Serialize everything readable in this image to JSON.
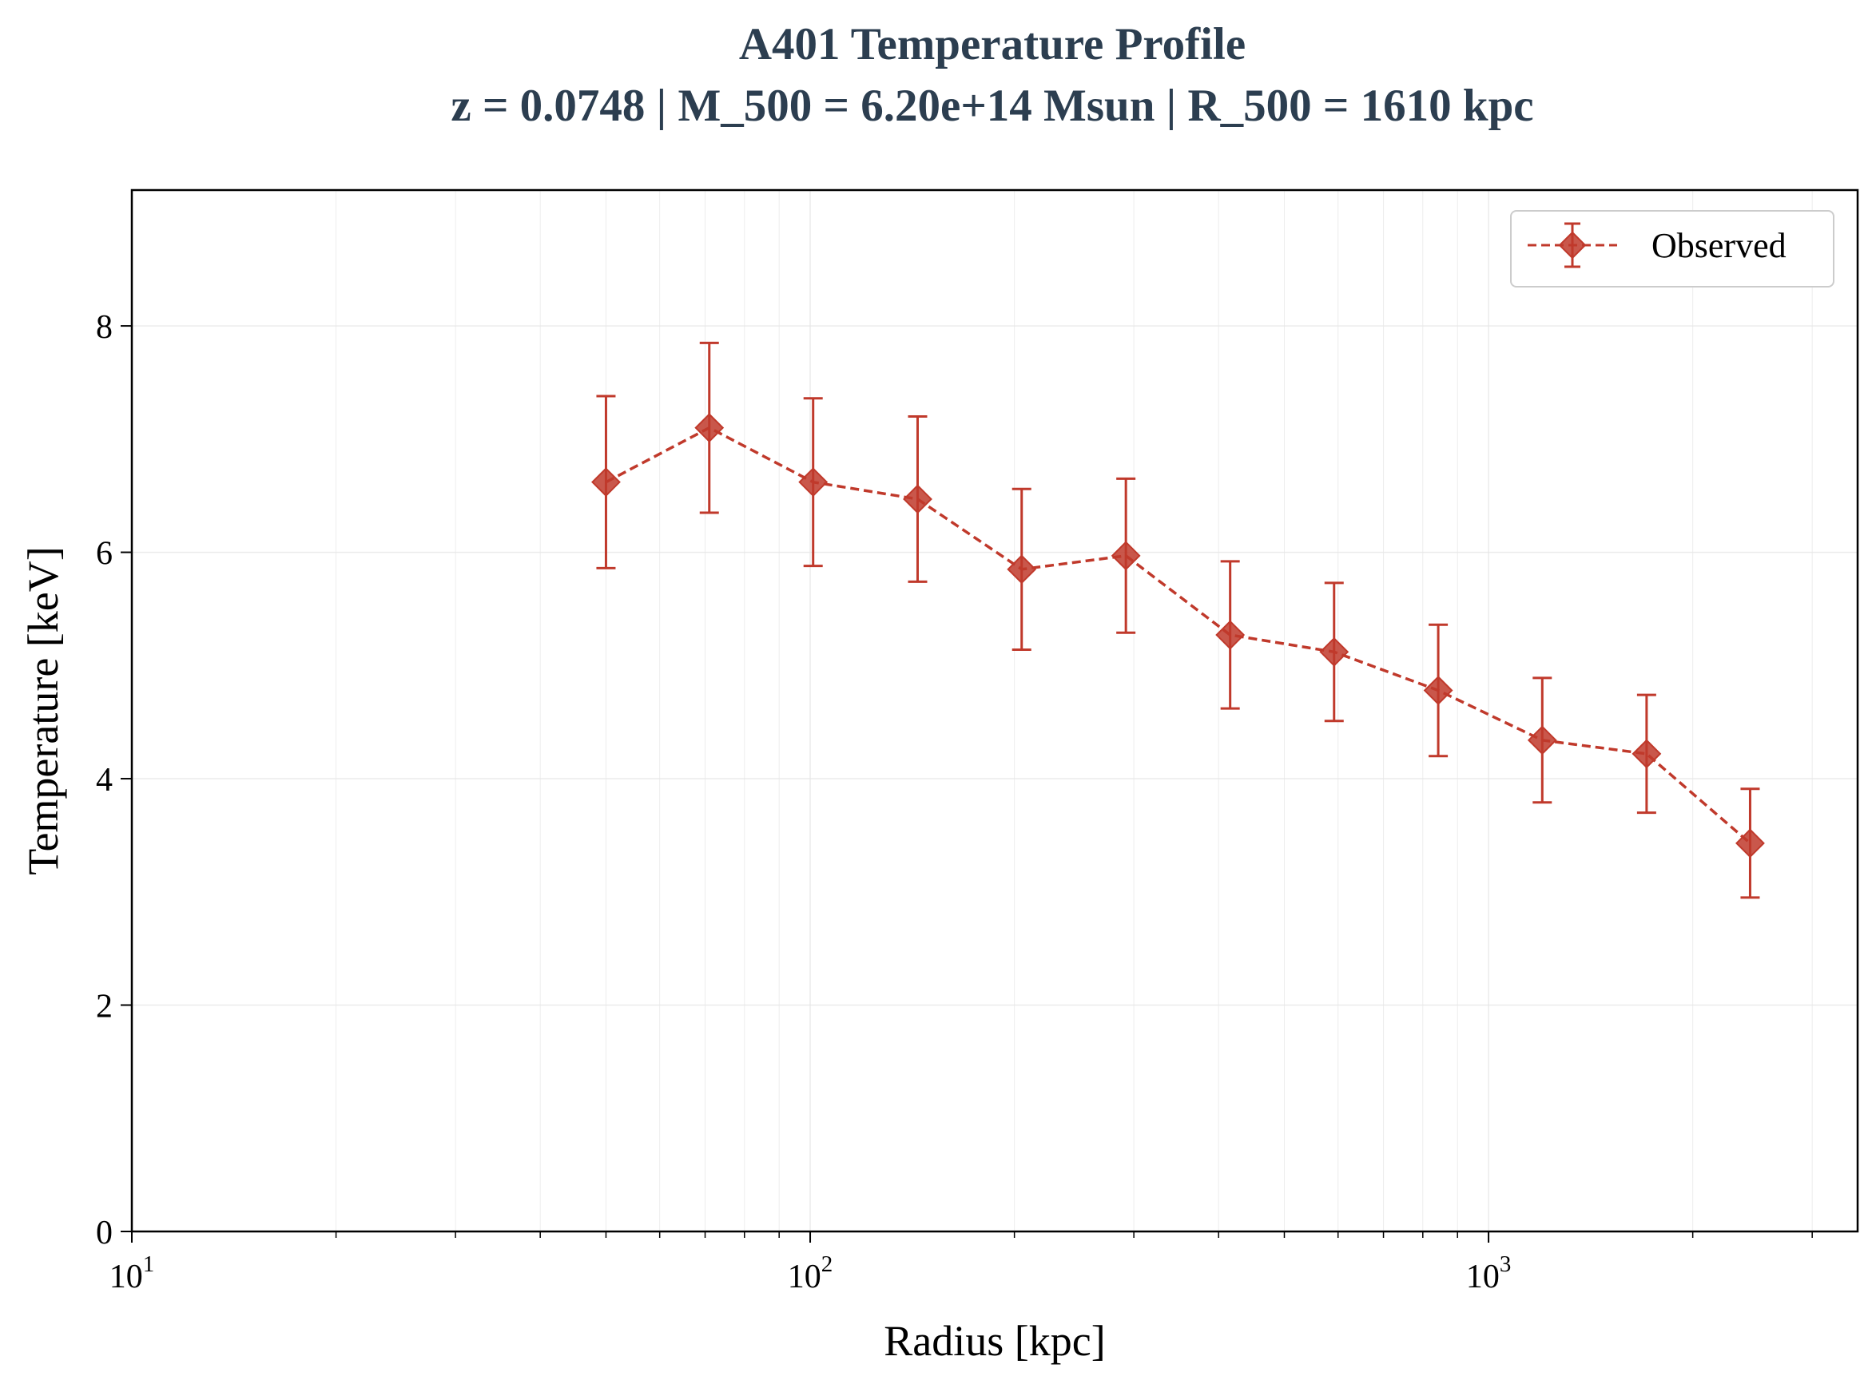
{
  "chart_data": {
    "type": "scatter",
    "title": "A401 Temperature Profile",
    "subtitle": "z = 0.0748 | M_500 = 6.20e+14 Msun | R_500 = 1610 kpc",
    "xlabel": "Radius [kpc]",
    "ylabel": "Temperature [keV]",
    "xscale": "log",
    "xlim": [
      10,
      3500
    ],
    "ylim": [
      0,
      9.2
    ],
    "x_ticks": [
      {
        "base": "10",
        "exp": "1",
        "value": 10
      },
      {
        "base": "10",
        "exp": "2",
        "value": 100
      },
      {
        "base": "10",
        "exp": "3",
        "value": 1000
      }
    ],
    "y_ticks": [
      {
        "label": "0",
        "value": 0
      },
      {
        "label": "2",
        "value": 2
      },
      {
        "label": "4",
        "value": 4
      },
      {
        "label": "6",
        "value": 6
      },
      {
        "label": "8",
        "value": 8
      }
    ],
    "grid": true,
    "legend_position": "top-right",
    "series": [
      {
        "name": "Observed",
        "color": "#c0392b",
        "marker": "diamond",
        "line_style": "dashed",
        "x": [
          50,
          71,
          101,
          144,
          205,
          292,
          416,
          592,
          843,
          1200,
          1710,
          2430
        ],
        "y": [
          6.62,
          7.1,
          6.62,
          6.47,
          5.85,
          5.97,
          5.27,
          5.12,
          4.78,
          4.34,
          4.22,
          3.43
        ],
        "yerr": [
          0.76,
          0.75,
          0.74,
          0.73,
          0.71,
          0.68,
          0.65,
          0.61,
          0.58,
          0.55,
          0.52,
          0.48
        ]
      }
    ]
  }
}
